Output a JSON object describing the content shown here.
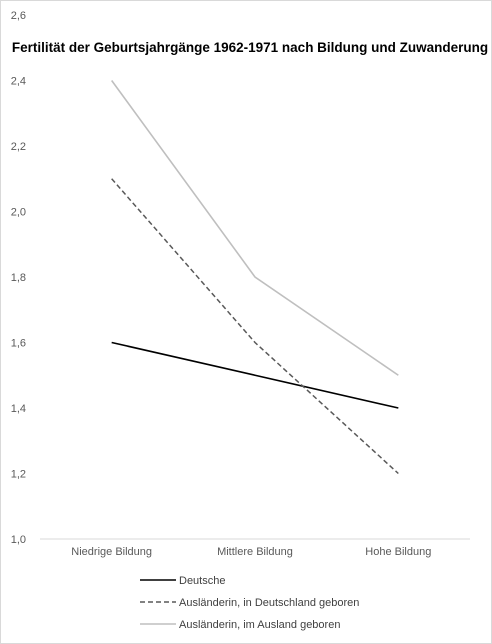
{
  "chart_data": {
    "type": "line",
    "title": "Fertilität der Geburtsjahrgänge 1962-1971 nach Bildung und Zuwanderung",
    "xlabel": "",
    "ylabel": "",
    "categories": [
      "Niedrige Bildung",
      "Mittlere Bildung",
      "Hohe Bildung"
    ],
    "ylim": [
      1.0,
      2.6
    ],
    "yticks": [
      "1,0",
      "1,2",
      "1,4",
      "1,6",
      "1,8",
      "2,0",
      "2,2",
      "2,4",
      "2,6"
    ],
    "legend_position": "bottom",
    "grid": false,
    "series": [
      {
        "name": "Deutsche",
        "values": [
          1.6,
          1.5,
          1.4
        ],
        "color": "#000000",
        "style": "solid"
      },
      {
        "name": "Ausländerin, in Deutschland geboren",
        "values": [
          2.1,
          1.6,
          1.2
        ],
        "color": "#595959",
        "style": "dashed"
      },
      {
        "name": "Ausländerin, im Ausland geboren",
        "values": [
          2.4,
          1.8,
          1.5
        ],
        "color": "#bfbfbf",
        "style": "solid"
      }
    ]
  }
}
